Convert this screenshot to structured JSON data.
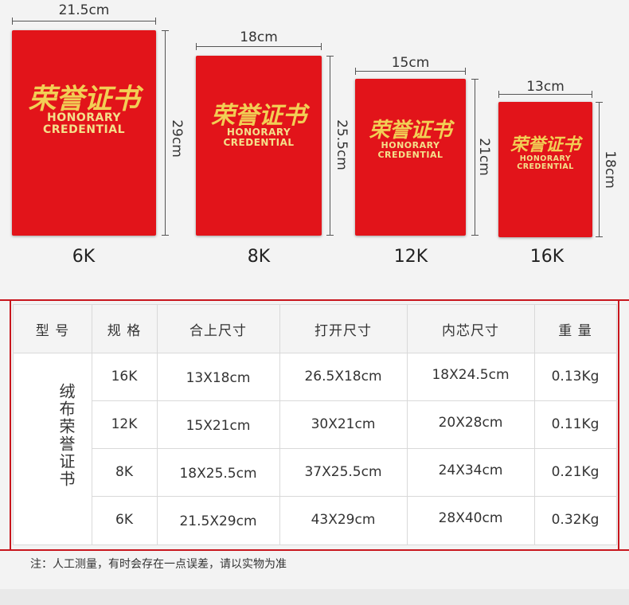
{
  "colors": {
    "cover_red": "#e2141a",
    "gold_text": "#f2cf55",
    "frame_red": "#c8161d",
    "background": "#f3f3f3"
  },
  "books": [
    {
      "size": "6K",
      "width_label": "21.5cm",
      "height_label": "29cm",
      "title_cn": "荣誉证书",
      "title_en_1": "HONORARY",
      "title_en_2": "CREDENTIAL"
    },
    {
      "size": "8K",
      "width_label": "18cm",
      "height_label": "25.5cm",
      "title_cn": "荣誉证书",
      "title_en_1": "HONORARY",
      "title_en_2": "CREDENTIAL"
    },
    {
      "size": "12K",
      "width_label": "15cm",
      "height_label": "21cm",
      "title_cn": "荣誉证书",
      "title_en_1": "HONORARY",
      "title_en_2": "CREDENTIAL"
    },
    {
      "size": "16K",
      "width_label": "13cm",
      "height_label": "18cm",
      "title_cn": "荣誉证书",
      "title_en_1": "HONORARY",
      "title_en_2": "CREDENTIAL"
    }
  ],
  "table": {
    "headers": [
      "型  号",
      "规 格",
      "合上尺寸",
      "打开尺寸",
      "内芯尺寸",
      "重 量"
    ],
    "model": "绒布荣誉证书",
    "rows": [
      {
        "spec": "16K",
        "closed": "13X18cm",
        "open": "26.5X18cm",
        "inner": "18X24.5cm",
        "weight": "0.13Kg"
      },
      {
        "spec": "12K",
        "closed": "15X21cm",
        "open": "30X21cm",
        "inner": "20X28cm",
        "weight": "0.11Kg"
      },
      {
        "spec": "8K",
        "closed": "18X25.5cm",
        "open": "37X25.5cm",
        "inner": "24X34cm",
        "weight": "0.21Kg"
      },
      {
        "spec": "6K",
        "closed": "21.5X29cm",
        "open": "43X29cm",
        "inner": "28X40cm",
        "weight": "0.32Kg"
      }
    ]
  },
  "note": "注：人工测量，有时会存在一点误差，请以实物为准"
}
